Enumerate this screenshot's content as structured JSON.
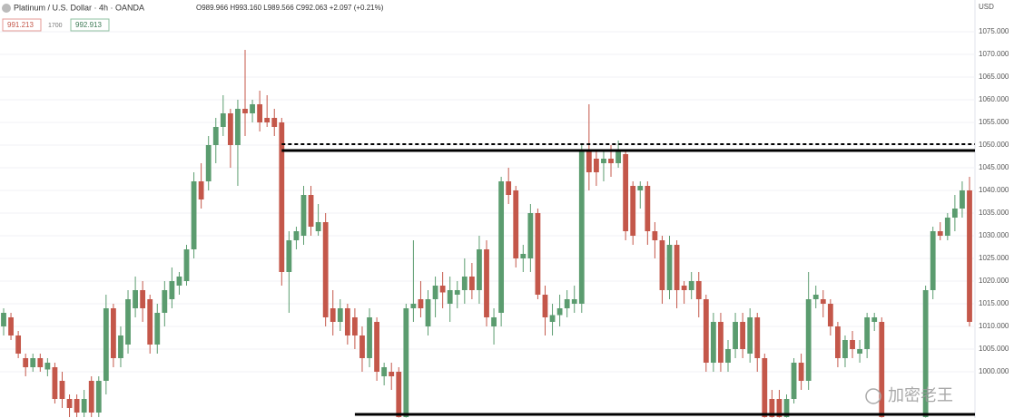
{
  "chart_data": {
    "type": "candlestick",
    "title": "Platinum / U.S. Dollar · 4h · OANDA",
    "ohlc_text": "O989.966 H993.160 L989.566 C992.063 +2.097 (+0.21%)",
    "bid": "991.213",
    "spread": "1700",
    "ask": "992.913",
    "currency": "USD",
    "watermark": "加密老王",
    "up_color": "#5b9c6f",
    "down_color": "#c4574a",
    "ylim": [
      989.8,
      1082
    ],
    "yticks": [
      {
        "value": 1000,
        "label": "1000.000"
      },
      {
        "value": 1005,
        "label": "1005.000"
      },
      {
        "value": 1010,
        "label": "1010.000"
      },
      {
        "value": 1015,
        "label": "1015.000"
      },
      {
        "value": 1020,
        "label": "1020.000"
      },
      {
        "value": 1025,
        "label": "1025.000"
      },
      {
        "value": 1030,
        "label": "1030.000"
      },
      {
        "value": 1035,
        "label": "1035.000"
      },
      {
        "value": 1040,
        "label": "1040.000"
      },
      {
        "value": 1045,
        "label": "1045.000"
      },
      {
        "value": 1050,
        "label": "1050.000"
      },
      {
        "value": 1055,
        "label": "1055.000"
      },
      {
        "value": 1060,
        "label": "1060.000"
      },
      {
        "value": 1065,
        "label": "1065.000"
      },
      {
        "value": 1070,
        "label": "1070.000"
      },
      {
        "value": 1075,
        "label": "1075.000"
      }
    ],
    "grid": true,
    "open": [
      1010,
      1012,
      1008,
      1003,
      1001,
      1003,
      1000.5,
      1001,
      998,
      994,
      994,
      991,
      998,
      991,
      998,
      1014,
      1003,
      1006,
      1014,
      1018,
      1016,
      1006,
      1013,
      1016,
      1019,
      1020,
      1027,
      1042,
      1042,
      1050,
      1054,
      1057,
      1050,
      1058,
      1057,
      1059,
      1056,
      1056,
      1055,
      1022,
      1029,
      1030,
      1039,
      1031,
      1033,
      1014,
      1011,
      1014,
      1012,
      1008,
      1003,
      1011,
      999,
      1000,
      1000,
      990,
      1014,
      1016,
      1010,
      1016,
      1019,
      1015,
      1017,
      1018,
      1021,
      1018,
      1027,
      1010,
      1013,
      1042,
      1040,
      1025,
      1025,
      1035,
      1017,
      1011,
      1012.5,
      1014,
      1015,
      1015,
      1049,
      1047,
      1046,
      1047,
      1046,
      1048,
      1041,
      1040,
      1041,
      1031,
      1029,
      1018,
      1028,
      1019,
      1018,
      1020,
      1016,
      1002,
      1011,
      1002,
      1005,
      1011,
      1004,
      1012,
      1003,
      994,
      994,
      990,
      994,
      1002,
      998,
      1016,
      1016,
      1015,
      1010,
      1003,
      1007,
      1004,
      1005,
      1011,
      1011,
      null,
      null,
      null,
      null,
      null,
      990,
      1018,
      1031,
      1030,
      1034,
      1036,
      1040
    ],
    "high": [
      1014,
      1013,
      1009,
      1004,
      1004,
      1004,
      1003,
      1002,
      1000,
      995,
      995,
      996,
      999,
      999,
      1017,
      1015,
      1010,
      1018,
      1021,
      1020,
      1017,
      1015,
      1020,
      1023,
      1022,
      1028,
      1044,
      1046,
      1052,
      1056,
      1061,
      1058,
      1060,
      1071,
      1060,
      1062,
      1061,
      1058,
      1056,
      1031,
      1032,
      1041,
      1041,
      1037,
      1035,
      1018,
      1016,
      1015,
      1014,
      1010,
      1014,
      1012,
      1002,
      1002,
      1001,
      1015,
      1029,
      1020,
      1018,
      1021,
      1022,
      1021,
      1020,
      1025,
      1024,
      1030,
      1029,
      1014,
      1043,
      1045,
      1041,
      1028,
      1037,
      1036,
      1019,
      1015,
      1017,
      1018,
      1019,
      1050,
      1059,
      1049,
      1049,
      1050,
      1051,
      1049,
      1042,
      1042,
      1042,
      1033,
      1030,
      1030,
      1029,
      1020,
      1022,
      1022,
      1017,
      1013,
      1013,
      1007,
      1013,
      1013,
      1014,
      1013,
      1004,
      996,
      996,
      995,
      1003,
      1004,
      1022,
      1019,
      1018,
      1016,
      1011,
      1008,
      1009,
      1007,
      1013,
      1013,
      1012,
      null,
      null,
      null,
      null,
      null,
      1019,
      1032,
      1033,
      1035,
      1039,
      1042,
      1043
    ],
    "low": [
      1008,
      1007,
      1003,
      999,
      1000,
      1000,
      999,
      993,
      992,
      990,
      990,
      990,
      990,
      990,
      995,
      1001,
      1001,
      1004,
      1012,
      1011,
      1004,
      1004,
      1010,
      1014,
      1017,
      1019,
      1025,
      1036,
      1040,
      1046,
      1052,
      1045,
      1041,
      1052,
      1055,
      1053,
      1054,
      1052,
      1019,
      1013,
      1027,
      1028,
      1030,
      1030,
      1010,
      1008,
      1009,
      1006,
      1005,
      1000,
      1001,
      998,
      997,
      996,
      989.9,
      989.9,
      1011,
      1012,
      1008,
      1012,
      1014,
      1011,
      1014,
      1015,
      1016,
      1015,
      1010,
      1006,
      1010,
      1037,
      1023,
      1022,
      1022,
      1016,
      1008,
      1008,
      1010,
      1012,
      1013,
      1013,
      1040,
      1041,
      1042,
      1043,
      1045,
      1029,
      1028,
      1036,
      1028,
      1025,
      1015,
      1016,
      1014,
      1015,
      1016,
      1012,
      1000,
      1000,
      1000,
      1000,
      1003,
      1003,
      1002,
      1000,
      989.9,
      989.9,
      989.9,
      989.9,
      993,
      996,
      996,
      1014,
      1012,
      1008,
      1001,
      1001,
      1003,
      1002,
      1003,
      1009,
      989.9,
      null,
      null,
      null,
      null,
      null,
      989.9,
      1016,
      1029,
      1029,
      1031,
      1034,
      1010
    ],
    "close": [
      1013,
      1008,
      1004,
      1001,
      1003,
      1001,
      1002,
      994,
      994,
      992,
      991,
      994,
      991,
      998,
      1014,
      1003,
      1008,
      1016,
      1018,
      1014,
      1006,
      1013,
      1018,
      1020,
      1021,
      1027,
      1042,
      1038,
      1050,
      1054,
      1057,
      1050,
      1058,
      1057,
      1059,
      1055,
      1055,
      1054,
      1022,
      1029,
      1031,
      1039,
      1032,
      1033,
      1012,
      1011,
      1014,
      1008,
      1008,
      1003,
      1012,
      1000,
      1001,
      999,
      990,
      1014,
      1015,
      1014,
      1016,
      1019,
      1017.5,
      1018,
      1018,
      1021,
      1018,
      1027,
      1012,
      1012,
      1042,
      1039,
      1025,
      1026,
      1035,
      1017,
      1012,
      1012.5,
      1014,
      1016,
      1016,
      1049,
      1044,
      1044,
      1047,
      1046,
      1049,
      1031,
      1030,
      1041,
      1031,
      1029,
      1018,
      1028,
      1018,
      1018,
      1020,
      1016,
      1002,
      1011,
      1002,
      1005,
      1011,
      1005,
      1012,
      1003,
      990,
      990,
      990,
      994,
      1002,
      998,
      1016,
      1017,
      1015,
      1010,
      1003,
      1007,
      1005,
      1005,
      1012,
      1012,
      990,
      null,
      null,
      null,
      null,
      null,
      1018,
      1031,
      1030,
      1034,
      1036,
      1040,
      1011
    ],
    "hlines": [
      {
        "value": 1050.2,
        "dashed": true,
        "start_index": 38
      },
      {
        "value": 1048.8,
        "dashed": false,
        "start_index": 38
      },
      {
        "value": 990.6,
        "dashed": false,
        "start_index": 48
      }
    ]
  }
}
